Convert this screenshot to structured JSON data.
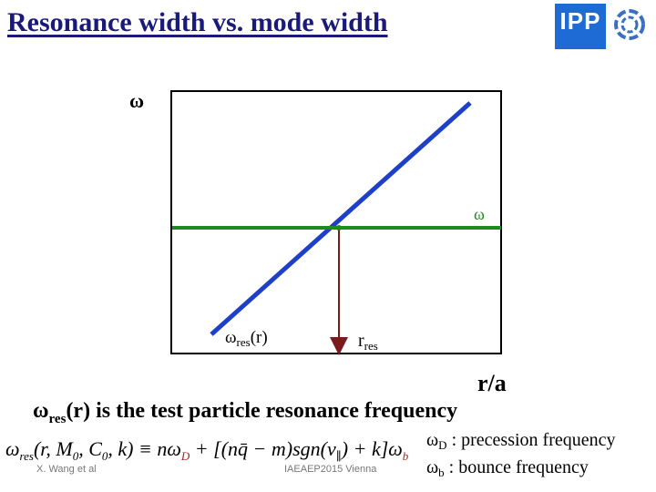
{
  "slide": {
    "title": "Resonance width vs. mode width",
    "logo_text": "IPP"
  },
  "diagram": {
    "y_axis_label": "ω",
    "horizontal_line_label": "ω",
    "wres_base": "ω",
    "wres_sub": "res",
    "wres_suffix": "(r)",
    "rres_base": "r",
    "rres_sub": "res",
    "x_axis_label": "r/a",
    "colors": {
      "diagonal": "#1e40c8",
      "horizontal": "#1e8b1e",
      "drop_arrow": "#7a1a1a"
    }
  },
  "description": {
    "prefix": "ω",
    "sub": "res",
    "text": "(r) is the test particle resonance frequency"
  },
  "formula": {
    "lhs": "ω",
    "lhs_sub": "res",
    "args": "(r, M",
    "args_sub0": "0",
    "args_mid": ", C",
    "args_sub1": "0",
    "args_end": ", k) ≡ nω",
    "d_sub": "D",
    "rest": " + [(nq̄ − m)sgn(v",
    "par_sub": "∥",
    "rest2": ") + k]ω",
    "b_sub": "b"
  },
  "legend": {
    "d_base": "ω",
    "d_sub": "D",
    "d_text": " : precession frequency",
    "b_base": "ω",
    "b_sub": "b",
    "b_text": " : bounce frequency"
  },
  "footer": {
    "author": "X. Wang et al",
    "event": "IAEAEP2015 Vienna"
  }
}
